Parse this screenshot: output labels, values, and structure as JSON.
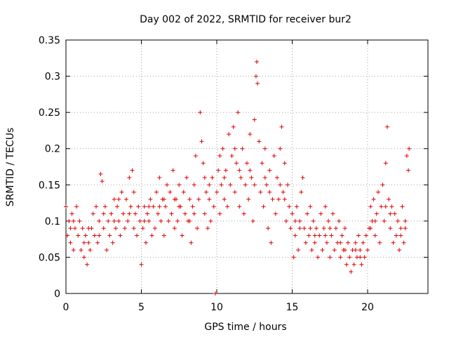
{
  "chart_data": {
    "type": "scatter",
    "title": "Day 002 of 2022, SRMTID for receiver bur2",
    "xlabel": "GPS time / hours",
    "ylabel": "SRMTID / TECUs",
    "xlim": [
      0,
      24
    ],
    "ylim": [
      0,
      0.35
    ],
    "xticks": [
      0,
      5,
      10,
      15,
      20
    ],
    "xtick_labels": [
      "0",
      "5",
      "10",
      "15",
      "20"
    ],
    "yticks": [
      0,
      0.05,
      0.1,
      0.15,
      0.2,
      0.25,
      0.3,
      0.35
    ],
    "ytick_labels": [
      "0",
      "0.05",
      "0.1",
      "0.15",
      "0.2",
      "0.25",
      "0.3",
      "0.35"
    ],
    "grid": true,
    "marker": "+",
    "color": "#e00000",
    "series": [
      {
        "name": "SRMTID",
        "points": [
          [
            0.0,
            0.12
          ],
          [
            0.1,
            0.08
          ],
          [
            0.2,
            0.1
          ],
          [
            0.3,
            0.07
          ],
          [
            0.4,
            0.11
          ],
          [
            0.5,
            0.06
          ],
          [
            0.6,
            0.09
          ],
          [
            0.7,
            0.12
          ],
          [
            0.8,
            0.08
          ],
          [
            0.9,
            0.1
          ],
          [
            1.0,
            0.06
          ],
          [
            1.1,
            0.09
          ],
          [
            1.2,
            0.05
          ],
          [
            1.3,
            0.08
          ],
          [
            1.4,
            0.04
          ],
          [
            1.5,
            0.07
          ],
          [
            1.6,
            0.06
          ],
          [
            1.7,
            0.09
          ],
          [
            1.8,
            0.11
          ],
          [
            1.9,
            0.08
          ],
          [
            2.0,
            0.12
          ],
          [
            2.1,
            0.07
          ],
          [
            2.2,
            0.1
          ],
          [
            2.3,
            0.165
          ],
          [
            2.4,
            0.155
          ],
          [
            2.5,
            0.09
          ],
          [
            2.6,
            0.12
          ],
          [
            2.7,
            0.06
          ],
          [
            2.8,
            0.1
          ],
          [
            2.9,
            0.08
          ],
          [
            3.0,
            0.11
          ],
          [
            3.1,
            0.07
          ],
          [
            3.2,
            0.13
          ],
          [
            3.3,
            0.09
          ],
          [
            3.4,
            0.12
          ],
          [
            3.5,
            0.1
          ],
          [
            3.6,
            0.08
          ],
          [
            3.7,
            0.14
          ],
          [
            3.8,
            0.11
          ],
          [
            3.9,
            0.09
          ],
          [
            4.0,
            0.13
          ],
          [
            4.1,
            0.1
          ],
          [
            4.2,
            0.16
          ],
          [
            4.3,
            0.12
          ],
          [
            4.4,
            0.17
          ],
          [
            4.5,
            0.09
          ],
          [
            4.6,
            0.11
          ],
          [
            4.7,
            0.08
          ],
          [
            4.8,
            0.12
          ],
          [
            4.9,
            0.1
          ],
          [
            5.0,
            0.04
          ],
          [
            5.1,
            0.09
          ],
          [
            5.2,
            0.12
          ],
          [
            5.3,
            0.07
          ],
          [
            5.4,
            0.11
          ],
          [
            5.5,
            0.1
          ],
          [
            5.6,
            0.13
          ],
          [
            5.7,
            0.08
          ],
          [
            5.8,
            0.12
          ],
          [
            5.9,
            0.09
          ],
          [
            6.0,
            0.14
          ],
          [
            6.1,
            0.11
          ],
          [
            6.2,
            0.16
          ],
          [
            6.3,
            0.1
          ],
          [
            6.4,
            0.13
          ],
          [
            6.5,
            0.08
          ],
          [
            6.6,
            0.12
          ],
          [
            6.7,
            0.15
          ],
          [
            6.8,
            0.1
          ],
          [
            6.9,
            0.14
          ],
          [
            7.0,
            0.11
          ],
          [
            7.1,
            0.17
          ],
          [
            7.2,
            0.09
          ],
          [
            7.3,
            0.13
          ],
          [
            7.4,
            0.1
          ],
          [
            7.5,
            0.15
          ],
          [
            7.6,
            0.12
          ],
          [
            7.7,
            0.08
          ],
          [
            7.8,
            0.14
          ],
          [
            7.9,
            0.11
          ],
          [
            8.0,
            0.16
          ],
          [
            8.1,
            0.1
          ],
          [
            8.2,
            0.13
          ],
          [
            8.3,
            0.07
          ],
          [
            8.4,
            0.12
          ],
          [
            8.5,
            0.15
          ],
          [
            8.6,
            0.19
          ],
          [
            8.7,
            0.09
          ],
          [
            8.8,
            0.13
          ],
          [
            8.9,
            0.25
          ],
          [
            9.0,
            0.21
          ],
          [
            9.1,
            0.18
          ],
          [
            9.2,
            0.11
          ],
          [
            9.3,
            0.14
          ],
          [
            9.4,
            0.09
          ],
          [
            9.5,
            0.13
          ],
          [
            9.6,
            0.1
          ],
          [
            9.7,
            0.16
          ],
          [
            9.8,
            0.12
          ],
          [
            9.9,
            0.0
          ],
          [
            10.0,
            0.14
          ],
          [
            10.1,
            0.17
          ],
          [
            10.2,
            0.11
          ],
          [
            10.3,
            0.15
          ],
          [
            10.4,
            0.2
          ],
          [
            10.5,
            0.13
          ],
          [
            10.6,
            0.17
          ],
          [
            10.7,
            0.12
          ],
          [
            10.8,
            0.22
          ],
          [
            10.9,
            0.15
          ],
          [
            11.0,
            0.19
          ],
          [
            11.1,
            0.23
          ],
          [
            11.2,
            0.14
          ],
          [
            11.3,
            0.18
          ],
          [
            11.4,
            0.25
          ],
          [
            11.5,
            0.12
          ],
          [
            11.6,
            0.16
          ],
          [
            11.7,
            0.2
          ],
          [
            11.8,
            0.11
          ],
          [
            11.9,
            0.15
          ],
          [
            12.0,
            0.18
          ],
          [
            12.1,
            0.13
          ],
          [
            12.2,
            0.22
          ],
          [
            12.3,
            0.16
          ],
          [
            12.4,
            0.1
          ],
          [
            12.5,
            0.24
          ],
          [
            12.6,
            0.3
          ],
          [
            12.65,
            0.32
          ],
          [
            12.7,
            0.29
          ],
          [
            12.8,
            0.21
          ],
          [
            12.9,
            0.14
          ],
          [
            13.0,
            0.18
          ],
          [
            13.1,
            0.12
          ],
          [
            13.2,
            0.2
          ],
          [
            13.3,
            0.15
          ],
          [
            13.4,
            0.09
          ],
          [
            13.5,
            0.17
          ],
          [
            13.6,
            0.07
          ],
          [
            13.7,
            0.13
          ],
          [
            13.8,
            0.19
          ],
          [
            13.9,
            0.11
          ],
          [
            14.0,
            0.16
          ],
          [
            14.1,
            0.13
          ],
          [
            14.2,
            0.2
          ],
          [
            14.3,
            0.23
          ],
          [
            14.4,
            0.14
          ],
          [
            14.5,
            0.18
          ],
          [
            14.6,
            0.1
          ],
          [
            14.7,
            0.15
          ],
          [
            14.8,
            0.12
          ],
          [
            14.9,
            0.09
          ],
          [
            15.0,
            0.11
          ],
          [
            15.1,
            0.05
          ],
          [
            15.2,
            0.08
          ],
          [
            15.3,
            0.12
          ],
          [
            15.4,
            0.06
          ],
          [
            15.5,
            0.1
          ],
          [
            15.6,
            0.14
          ],
          [
            15.7,
            0.16
          ],
          [
            15.8,
            0.09
          ],
          [
            15.9,
            0.07
          ],
          [
            16.0,
            0.11
          ],
          [
            16.1,
            0.08
          ],
          [
            16.2,
            0.12
          ],
          [
            16.3,
            0.06
          ],
          [
            16.4,
            0.1
          ],
          [
            16.5,
            0.07
          ],
          [
            16.6,
            0.09
          ],
          [
            16.7,
            0.05
          ],
          [
            16.8,
            0.08
          ],
          [
            16.9,
            0.11
          ],
          [
            17.0,
            0.06
          ],
          [
            17.1,
            0.09
          ],
          [
            17.2,
            0.12
          ],
          [
            17.3,
            0.07
          ],
          [
            17.4,
            0.1
          ],
          [
            17.5,
            0.05
          ],
          [
            17.6,
            0.08
          ],
          [
            17.7,
            0.11
          ],
          [
            17.8,
            0.06
          ],
          [
            17.9,
            0.09
          ],
          [
            18.0,
            0.07
          ],
          [
            18.1,
            0.1
          ],
          [
            18.2,
            0.05
          ],
          [
            18.3,
            0.08
          ],
          [
            18.4,
            0.06
          ],
          [
            18.5,
            0.09
          ],
          [
            18.6,
            0.04
          ],
          [
            18.7,
            0.07
          ],
          [
            18.8,
            0.05
          ],
          [
            18.9,
            0.03
          ],
          [
            19.0,
            0.06
          ],
          [
            19.1,
            0.04
          ],
          [
            19.2,
            0.07
          ],
          [
            19.3,
            0.05
          ],
          [
            19.4,
            0.08
          ],
          [
            19.5,
            0.06
          ],
          [
            19.6,
            0.04
          ],
          [
            19.7,
            0.07
          ],
          [
            19.8,
            0.05
          ],
          [
            19.9,
            0.08
          ],
          [
            20.0,
            0.06
          ],
          [
            20.1,
            0.09
          ],
          [
            20.2,
            0.12
          ],
          [
            20.3,
            0.1
          ],
          [
            20.4,
            0.13
          ],
          [
            20.5,
            0.08
          ],
          [
            20.6,
            0.11
          ],
          [
            20.7,
            0.14
          ],
          [
            20.8,
            0.07
          ],
          [
            20.9,
            0.12
          ],
          [
            21.0,
            0.15
          ],
          [
            21.1,
            0.1
          ],
          [
            21.2,
            0.18
          ],
          [
            21.3,
            0.23
          ],
          [
            21.4,
            0.13
          ],
          [
            21.5,
            0.09
          ],
          [
            21.6,
            0.12
          ],
          [
            21.7,
            0.07
          ],
          [
            21.8,
            0.11
          ],
          [
            21.9,
            0.08
          ],
          [
            22.0,
            0.1
          ],
          [
            22.1,
            0.06
          ],
          [
            22.2,
            0.09
          ],
          [
            22.3,
            0.12
          ],
          [
            22.4,
            0.07
          ],
          [
            22.5,
            0.1
          ],
          [
            22.6,
            0.19
          ],
          [
            22.7,
            0.17
          ],
          [
            22.75,
            0.2
          ],
          [
            0.5,
            0.1
          ],
          [
            1.5,
            0.09
          ],
          [
            2.5,
            0.11
          ],
          [
            3.5,
            0.13
          ],
          [
            4.5,
            0.14
          ],
          [
            5.5,
            0.12
          ],
          [
            6.5,
            0.13
          ],
          [
            7.5,
            0.12
          ],
          [
            8.5,
            0.11
          ],
          [
            9.5,
            0.15
          ],
          [
            10.5,
            0.16
          ],
          [
            11.5,
            0.17
          ],
          [
            12.5,
            0.15
          ],
          [
            13.5,
            0.14
          ],
          [
            14.5,
            0.13
          ],
          [
            15.5,
            0.09
          ],
          [
            16.5,
            0.08
          ],
          [
            17.5,
            0.09
          ],
          [
            18.5,
            0.06
          ],
          [
            19.5,
            0.05
          ],
          [
            20.5,
            0.1
          ],
          [
            21.5,
            0.11
          ],
          [
            22.5,
            0.09
          ],
          [
            0.3,
            0.09
          ],
          [
            1.2,
            0.07
          ],
          [
            2.2,
            0.08
          ],
          [
            3.2,
            0.1
          ],
          [
            4.2,
            0.11
          ],
          [
            5.2,
            0.1
          ],
          [
            6.2,
            0.12
          ],
          [
            7.2,
            0.13
          ],
          [
            8.2,
            0.1
          ],
          [
            9.2,
            0.16
          ],
          [
            10.2,
            0.19
          ],
          [
            11.2,
            0.2
          ],
          [
            12.2,
            0.17
          ],
          [
            13.2,
            0.16
          ],
          [
            14.2,
            0.15
          ],
          [
            15.2,
            0.1
          ],
          [
            16.2,
            0.09
          ],
          [
            17.2,
            0.08
          ],
          [
            18.2,
            0.07
          ],
          [
            19.2,
            0.06
          ],
          [
            20.2,
            0.09
          ],
          [
            21.2,
            0.12
          ],
          [
            22.2,
            0.08
          ]
        ]
      }
    ]
  }
}
